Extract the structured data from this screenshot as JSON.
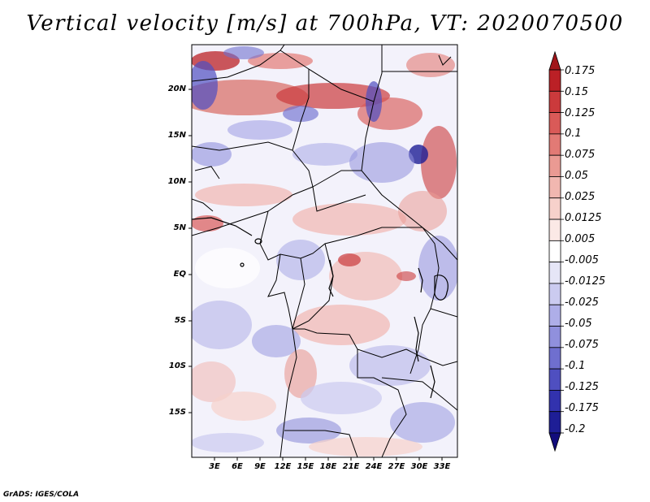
{
  "title": "Vertical velocity [m/s] at 700hPa, VT: 2020070500",
  "credit": "GrADS: IGES/COLA",
  "lat_labels": [
    "20N",
    "15N",
    "10N",
    "5N",
    "EQ",
    "5S",
    "10S",
    "15S"
  ],
  "lon_labels": [
    "3E",
    "6E",
    "9E",
    "12E",
    "15E",
    "18E",
    "21E",
    "24E",
    "27E",
    "30E",
    "33E"
  ],
  "map_extent": {
    "lon": [
      0,
      35
    ],
    "lat": [
      -20,
      25
    ]
  },
  "colorbar": {
    "levels": [
      "0.175",
      "0.15",
      "0.125",
      "0.1",
      "0.075",
      "0.05",
      "0.025",
      "0.0125",
      "0.005",
      "-0.005",
      "-0.0125",
      "-0.025",
      "-0.05",
      "-0.075",
      "-0.1",
      "-0.125",
      "-0.175",
      "-0.2"
    ],
    "colors": [
      "#a1161a",
      "#bb2026",
      "#cb3a3c",
      "#d95a58",
      "#e27a75",
      "#ea9a93",
      "#f1b7b0",
      "#f7d1cb",
      "#fbe9e6",
      "#ffffff",
      "#e6e6f7",
      "#cbcbf0",
      "#aeaee8",
      "#9090dd",
      "#6f6fcf",
      "#4f4fc0",
      "#3232ae",
      "#1e1e96",
      "#120c7c"
    ]
  }
}
